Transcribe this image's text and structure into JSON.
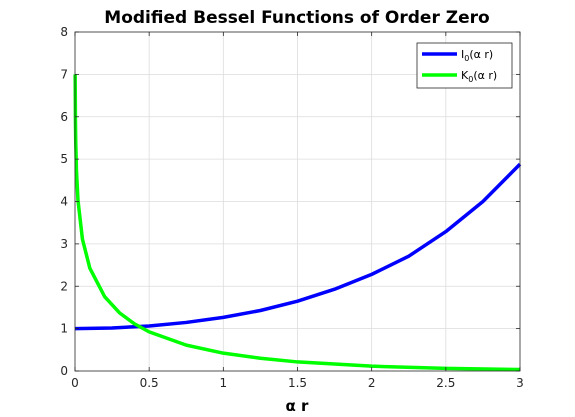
{
  "chart_data": {
    "type": "line",
    "title": "Modified Bessel Functions of Order Zero",
    "xlabel": "α r",
    "ylabel": "",
    "xlim": [
      0,
      3
    ],
    "ylim": [
      0,
      8
    ],
    "xticks": [
      0,
      0.5,
      1,
      1.5,
      2,
      2.5,
      3
    ],
    "xtick_labels": [
      "0",
      "0.5",
      "1",
      "1.5",
      "2",
      "2.5",
      "3"
    ],
    "yticks": [
      0,
      1,
      2,
      3,
      4,
      5,
      6,
      7,
      8
    ],
    "ytick_labels": [
      "0",
      "1",
      "2",
      "3",
      "4",
      "5",
      "6",
      "7",
      "8"
    ],
    "grid": true,
    "legend_position": "top-right",
    "series": [
      {
        "name": "I0(α r)",
        "legend_main": "I",
        "legend_sub": "0",
        "legend_rest": "(α r)",
        "color": "#0000ff",
        "x": [
          0,
          0.25,
          0.5,
          0.75,
          1,
          1.25,
          1.5,
          1.75,
          2,
          2.25,
          2.5,
          2.75,
          3
        ],
        "y": [
          1.0,
          1.016,
          1.063,
          1.146,
          1.266,
          1.428,
          1.647,
          1.93,
          2.28,
          2.71,
          3.29,
          4.0,
          4.881
        ]
      },
      {
        "name": "K0(α r)",
        "legend_main": "K",
        "legend_sub": "0",
        "legend_rest": "(α r)",
        "color": "#00ff00",
        "x": [
          0.001,
          0.003,
          0.005,
          0.01,
          0.02,
          0.05,
          0.1,
          0.2,
          0.3,
          0.4,
          0.5,
          0.75,
          1,
          1.25,
          1.5,
          2,
          2.5,
          3
        ],
        "y": [
          7.0,
          5.93,
          5.41,
          4.72,
          4.03,
          3.114,
          2.427,
          1.753,
          1.372,
          1.115,
          0.924,
          0.611,
          0.421,
          0.3,
          0.214,
          0.114,
          0.062,
          0.035
        ]
      }
    ]
  }
}
